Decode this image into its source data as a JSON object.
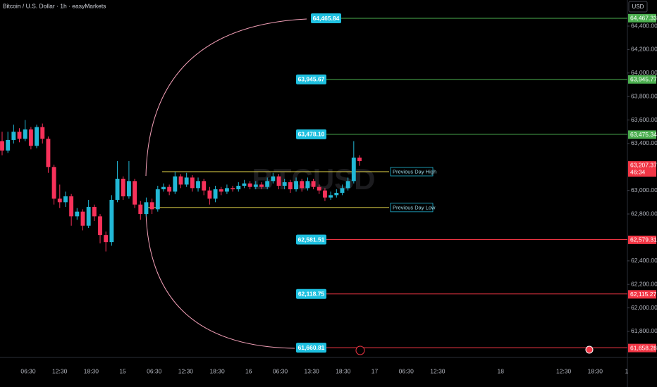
{
  "chart_data": {
    "type": "candlestick",
    "title": "Bitcoin / U.S. Dollar · 1h · easyMarkets",
    "watermark": "BTCUSD",
    "currency": "USD",
    "up_color": "#22b8d6",
    "down_color": "#f7315a",
    "ylim": [
      61578,
      64622
    ],
    "yticks": [
      {
        "value": 64400,
        "label": "64,400.00"
      },
      {
        "value": 64200,
        "label": "64,200.00"
      },
      {
        "value": 64000,
        "label": "64,000.00"
      },
      {
        "value": 63800,
        "label": "63,800.00"
      },
      {
        "value": 63600,
        "label": "63,600.00"
      },
      {
        "value": 63400,
        "label": "63,400.00"
      },
      {
        "value": 63000,
        "label": "63,000.00"
      },
      {
        "value": 62800,
        "label": "62,800.00"
      },
      {
        "value": 62400,
        "label": "62,400.00"
      },
      {
        "value": 62200,
        "label": "62,200.00"
      },
      {
        "value": 62000,
        "label": "62,000.00"
      },
      {
        "value": 61800,
        "label": "61,800.00"
      }
    ],
    "xlabels": [
      "06:30",
      "12:30",
      "18:30",
      "15",
      "06:30",
      "12:30",
      "18:30",
      "16",
      "06:30",
      "13:30",
      "18:30",
      "17",
      "06:30",
      "12:30",
      null,
      "18",
      null,
      "12:30",
      "18:30",
      "1"
    ],
    "open": [
      63420,
      63340,
      63430,
      63500,
      63440,
      63520,
      63380,
      63540,
      63440,
      63200,
      62930,
      62900,
      62950,
      62780,
      62820,
      62700,
      62860,
      62780,
      62620,
      62560,
      62920,
      63100,
      62950,
      63080,
      62880,
      62800,
      62900,
      62840,
      63010,
      63030,
      62990,
      63120,
      63050,
      63110,
      63020,
      63080,
      63000,
      62930,
      63010,
      62990,
      63020,
      63010,
      63040,
      63060,
      63030,
      63050,
      63030,
      63080,
      63120,
      63040,
      63070,
      63010,
      63080,
      63020,
      63080,
      63030,
      63000,
      62940,
      62960,
      62980,
      63020,
      63080,
      63280
    ],
    "high": [
      63500,
      63500,
      63560,
      63530,
      63600,
      63540,
      63560,
      63570,
      63460,
      63220,
      63050,
      62990,
      62970,
      62850,
      62840,
      62920,
      62880,
      62800,
      62650,
      62960,
      63250,
      63120,
      63250,
      63100,
      62910,
      62940,
      62930,
      63040,
      63060,
      63050,
      63160,
      63140,
      63150,
      63130,
      63110,
      63100,
      63030,
      63040,
      63030,
      63050,
      63040,
      63070,
      63090,
      63080,
      63080,
      63070,
      63110,
      63150,
      63140,
      63100,
      63090,
      63110,
      63100,
      63110,
      63100,
      63050,
      63020,
      62990,
      63010,
      63050,
      63110,
      63420,
      63300
    ],
    "low": [
      63300,
      63320,
      63400,
      63410,
      63420,
      63350,
      63360,
      63400,
      63150,
      62880,
      62850,
      62860,
      62700,
      62750,
      62660,
      62680,
      62740,
      62550,
      62480,
      62530,
      62900,
      62920,
      62930,
      62850,
      62750,
      62780,
      62800,
      62820,
      62990,
      62960,
      62970,
      63020,
      63030,
      62990,
      62990,
      62960,
      62880,
      62900,
      62960,
      62970,
      62990,
      62990,
      63020,
      63010,
      63010,
      63010,
      63010,
      63060,
      63010,
      63010,
      62980,
      62990,
      62990,
      63000,
      63010,
      62970,
      62910,
      62920,
      62940,
      62960,
      63000,
      63060,
      63210
    ],
    "close": [
      63340,
      63430,
      63500,
      63440,
      63520,
      63380,
      63540,
      63440,
      63200,
      62930,
      62900,
      62950,
      62780,
      62820,
      62700,
      62860,
      62780,
      62620,
      62560,
      62920,
      63100,
      62950,
      63080,
      62880,
      62800,
      62900,
      62840,
      63010,
      63030,
      62990,
      63120,
      63050,
      63110,
      63020,
      63080,
      63000,
      62930,
      63010,
      62990,
      63020,
      63010,
      63040,
      63060,
      63030,
      63050,
      63030,
      63080,
      63120,
      63040,
      63070,
      63010,
      63080,
      63020,
      63080,
      63030,
      63000,
      62940,
      62960,
      62980,
      63020,
      63080,
      63280,
      63250
    ],
    "levels": [
      {
        "value": 64465.84,
        "label": "64,465.84",
        "tag": {
          "value": 64467.33,
          "label": "64,467.33"
        },
        "color": "#4caf50"
      },
      {
        "value": 63945.67,
        "label": "63,945.67",
        "tag": {
          "value": 63945.77,
          "label": "63,945.77"
        },
        "color": "#4caf50"
      },
      {
        "value": 63478.1,
        "label": "63,478.10",
        "tag": {
          "value": 63475.34,
          "label": "63,475.34"
        },
        "color": "#4caf50"
      },
      {
        "value": 62581.51,
        "label": "62,581.51",
        "tag": {
          "value": 62579.31,
          "label": "62,579.31"
        },
        "color": "#f23645"
      },
      {
        "value": 62118.75,
        "label": "62,118.75",
        "tag": {
          "value": 62115.27,
          "label": "62,115.27"
        },
        "color": "#f23645"
      },
      {
        "value": 61660.81,
        "label": "61,660.81",
        "tag": {
          "value": 61658.28,
          "label": "61,658.28"
        },
        "color": "#f23645"
      }
    ],
    "day_lines": [
      {
        "name": "Previous Day High",
        "value": 63160,
        "color": "#e6d84a"
      },
      {
        "name": "Previous Day Low",
        "value": 62855,
        "color": "#e6d84a"
      }
    ],
    "last_price": {
      "value": 63207.37,
      "label": "63,207.37",
      "countdown": "46:34",
      "color": "#f23645"
    }
  }
}
